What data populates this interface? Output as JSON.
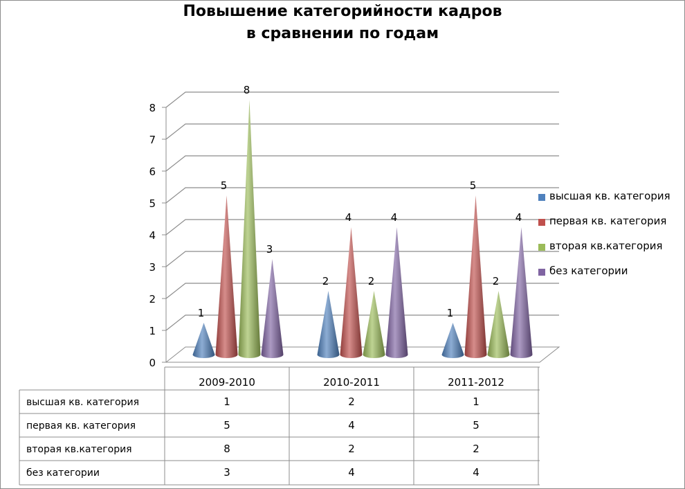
{
  "chart_data": {
    "type": "bar",
    "shape": "cone-3d",
    "title": [
      "Повышение категорийности кадров",
      "в сравнении по годам"
    ],
    "categories": [
      "2009-2010",
      "2010-2011",
      "2011-2012"
    ],
    "ylim": [
      0,
      8
    ],
    "yticks": [
      "0",
      "1",
      "2",
      "3",
      "4",
      "5",
      "6",
      "7",
      "8"
    ],
    "grid": true,
    "legend_position": "right",
    "data_table": true,
    "series": [
      {
        "name": "высшая кв. категория",
        "color": "#4f81bd",
        "values": [
          1,
          2,
          1
        ],
        "labels": [
          "1",
          "2",
          "1"
        ]
      },
      {
        "name": "первая кв. категория",
        "color": "#c0504d",
        "values": [
          5,
          4,
          5
        ],
        "labels": [
          "5",
          "4",
          "5"
        ]
      },
      {
        "name": "вторая кв.категория",
        "color": "#9bbb59",
        "values": [
          8,
          2,
          2
        ],
        "labels": [
          "8",
          "2",
          "2"
        ]
      },
      {
        "name": "без категории",
        "color": "#8064a2",
        "values": [
          3,
          4,
          4
        ],
        "labels": [
          "3",
          "4",
          "4"
        ]
      }
    ]
  }
}
